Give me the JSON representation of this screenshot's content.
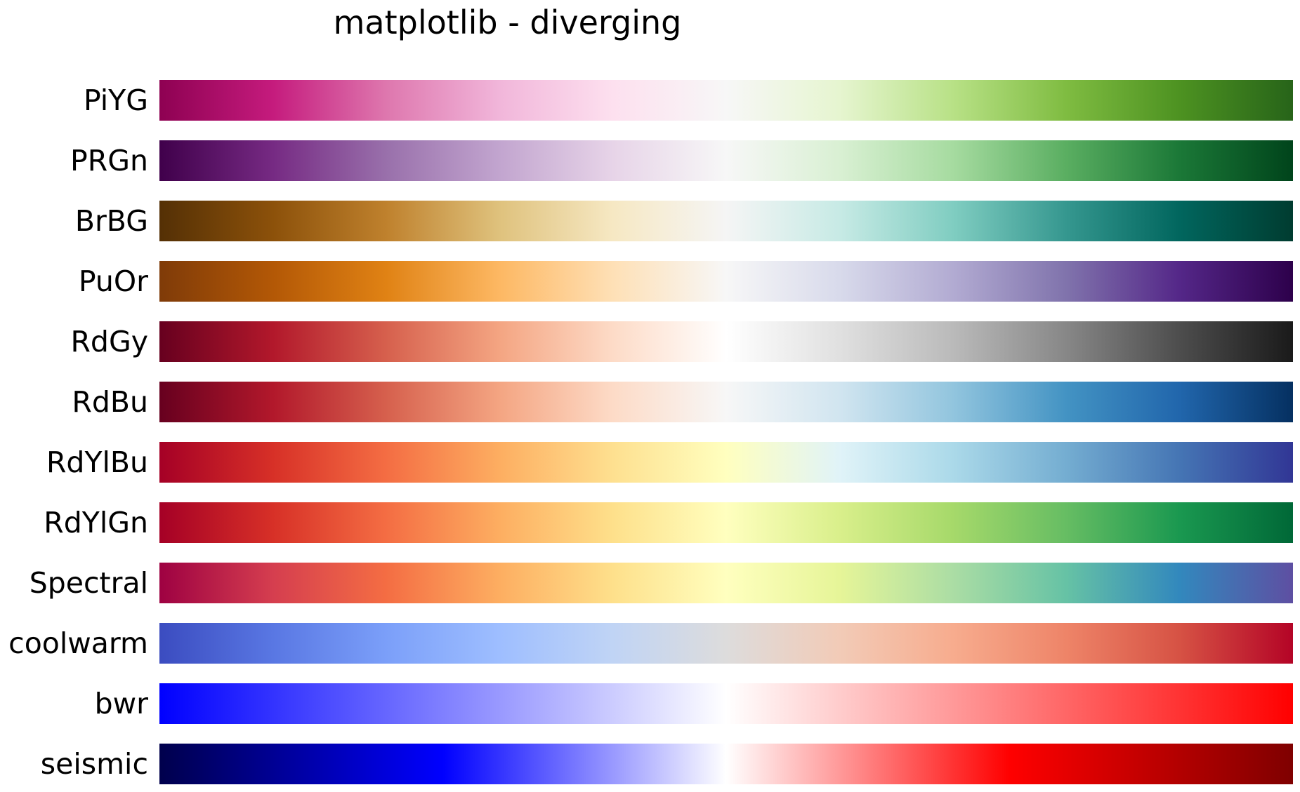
{
  "chart_data": {
    "type": "heatmap",
    "title": "matplotlib - diverging",
    "xlabel": "",
    "ylabel": "",
    "grid": false,
    "colormaps": [
      {
        "name": "PiYG",
        "colors": [
          "#8e0152",
          "#c51b7d",
          "#de77ae",
          "#f1b6da",
          "#fde0ef",
          "#f7f7f7",
          "#e6f5d0",
          "#b8e186",
          "#7fbc41",
          "#4d9221",
          "#276419"
        ]
      },
      {
        "name": "PRGn",
        "colors": [
          "#40004b",
          "#762a83",
          "#9970ab",
          "#c2a5cf",
          "#e7d4e8",
          "#f7f7f7",
          "#d9f0d3",
          "#a6dba0",
          "#5aae61",
          "#1b7837",
          "#00441b"
        ]
      },
      {
        "name": "BrBG",
        "colors": [
          "#543005",
          "#8c510a",
          "#bf812d",
          "#dfc27d",
          "#f6e8c3",
          "#f5f5f5",
          "#c7eae5",
          "#80cdc1",
          "#35978f",
          "#01665e",
          "#003c30"
        ]
      },
      {
        "name": "PuOr",
        "colors": [
          "#7f3b08",
          "#b35806",
          "#e08214",
          "#fdb863",
          "#fee0b6",
          "#f7f7f7",
          "#d8daeb",
          "#b2abd2",
          "#8073ac",
          "#542788",
          "#2d004b"
        ]
      },
      {
        "name": "RdGy",
        "colors": [
          "#67001f",
          "#b2182b",
          "#d6604d",
          "#f4a582",
          "#fddbc7",
          "#ffffff",
          "#e0e0e0",
          "#bababa",
          "#878787",
          "#4d4d4d",
          "#1a1a1a"
        ]
      },
      {
        "name": "RdBu",
        "colors": [
          "#67001f",
          "#b2182b",
          "#d6604d",
          "#f4a582",
          "#fddbc7",
          "#f7f7f7",
          "#d1e5f0",
          "#92c5de",
          "#4393c3",
          "#2166ac",
          "#053061"
        ]
      },
      {
        "name": "RdYlBu",
        "colors": [
          "#a50026",
          "#d73027",
          "#f46d43",
          "#fdae61",
          "#fee090",
          "#ffffbf",
          "#e0f3f8",
          "#abd9e9",
          "#74add1",
          "#4575b4",
          "#313695"
        ]
      },
      {
        "name": "RdYlGn",
        "colors": [
          "#a50026",
          "#d73027",
          "#f46d43",
          "#fdae61",
          "#fee08b",
          "#ffffbf",
          "#d9ef8b",
          "#a6d96a",
          "#66bd63",
          "#1a9850",
          "#006837"
        ]
      },
      {
        "name": "Spectral",
        "colors": [
          "#9e0142",
          "#d53e4f",
          "#f46d43",
          "#fdae61",
          "#fee08b",
          "#ffffbf",
          "#e6f598",
          "#abdda4",
          "#66c2a5",
          "#3288bd",
          "#5e4fa2"
        ]
      },
      {
        "name": "coolwarm",
        "colors": [
          "#3b4cc0",
          "#5977e3",
          "#7b9ff9",
          "#9ebeff",
          "#c0d4f5",
          "#dddcdc",
          "#f2cbb7",
          "#f7ac8e",
          "#ee8468",
          "#d65244",
          "#b40426"
        ]
      },
      {
        "name": "bwr",
        "colors": [
          "#0000ff",
          "#ffffff",
          "#ff0000"
        ]
      },
      {
        "name": "seismic",
        "colors": [
          "#00004c",
          "#0000ff",
          "#ffffff",
          "#ff0000",
          "#7f0000"
        ]
      }
    ]
  }
}
